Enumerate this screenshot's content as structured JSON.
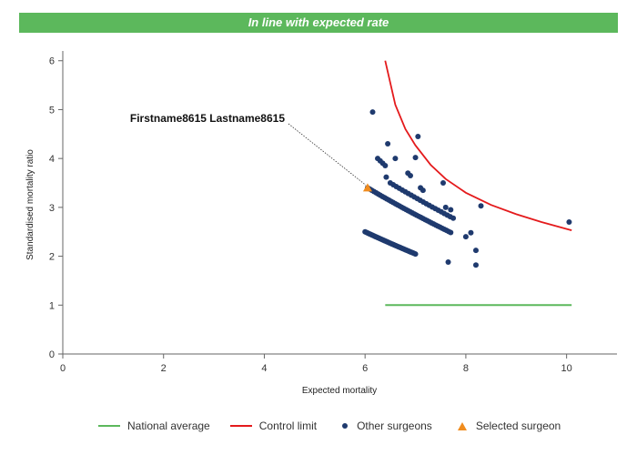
{
  "banner": {
    "text": "In line with expected rate",
    "color": "#5cb85c"
  },
  "chart_data": {
    "type": "scatter",
    "xlabel": "Expected mortality",
    "ylabel": "Standardised mortality ratio",
    "xlim": [
      0,
      11
    ],
    "ylim": [
      0,
      6.2
    ],
    "xticks": [
      0,
      2,
      4,
      6,
      8,
      10
    ],
    "yticks": [
      0,
      1,
      2,
      3,
      4,
      5,
      6
    ],
    "grid": false,
    "legend_position": "bottom",
    "national_average": {
      "name": "National average",
      "color": "#5cb85c",
      "x": [
        6.4,
        10.1
      ],
      "y": [
        1,
        1
      ]
    },
    "control_limit": {
      "name": "Control limit",
      "color": "#e41a1c",
      "x": [
        6.4,
        6.6,
        6.8,
        7.0,
        7.3,
        7.6,
        8.0,
        8.5,
        9.0,
        9.5,
        10.1
      ],
      "y": [
        6.0,
        5.1,
        4.6,
        4.27,
        3.87,
        3.58,
        3.3,
        3.05,
        2.86,
        2.7,
        2.53
      ]
    },
    "other_surgeons": {
      "name": "Other surgeons",
      "color": "#1f3a6e",
      "bands": [
        {
          "x_start": 6.0,
          "x_end": 7.0,
          "y_start": 2.5,
          "y_end": 1.95,
          "count": 45
        },
        {
          "x_start": 6.05,
          "x_end": 7.7,
          "y_start": 3.4,
          "y_end": 2.3,
          "count": 40
        },
        {
          "x_start": 6.5,
          "x_end": 7.75,
          "y_start": 3.5,
          "y_end": 2.62,
          "count": 22
        },
        {
          "x_start": 6.25,
          "x_end": 6.4,
          "y_start": 4.0,
          "y_end": 3.8,
          "count": 4
        }
      ],
      "extra_points": [
        {
          "x": 6.15,
          "y": 4.95
        },
        {
          "x": 6.45,
          "y": 4.3
        },
        {
          "x": 7.05,
          "y": 4.45
        },
        {
          "x": 6.6,
          "y": 4.0
        },
        {
          "x": 7.0,
          "y": 4.02
        },
        {
          "x": 6.85,
          "y": 3.7
        },
        {
          "x": 6.9,
          "y": 3.65
        },
        {
          "x": 6.42,
          "y": 3.62
        },
        {
          "x": 7.1,
          "y": 3.4
        },
        {
          "x": 7.15,
          "y": 3.35
        },
        {
          "x": 7.55,
          "y": 3.5
        },
        {
          "x": 8.3,
          "y": 3.03
        },
        {
          "x": 7.6,
          "y": 3.0
        },
        {
          "x": 7.7,
          "y": 2.95
        },
        {
          "x": 8.1,
          "y": 2.48
        },
        {
          "x": 8.0,
          "y": 2.4
        },
        {
          "x": 8.2,
          "y": 2.12
        },
        {
          "x": 7.65,
          "y": 1.88
        },
        {
          "x": 8.2,
          "y": 1.82
        },
        {
          "x": 10.05,
          "y": 2.7
        }
      ]
    },
    "selected_surgeon": {
      "name": "Selected surgeon",
      "color": "#f08c1e",
      "label": "Firstname8615 Lastname8615",
      "x": 6.05,
      "y": 3.4
    }
  }
}
